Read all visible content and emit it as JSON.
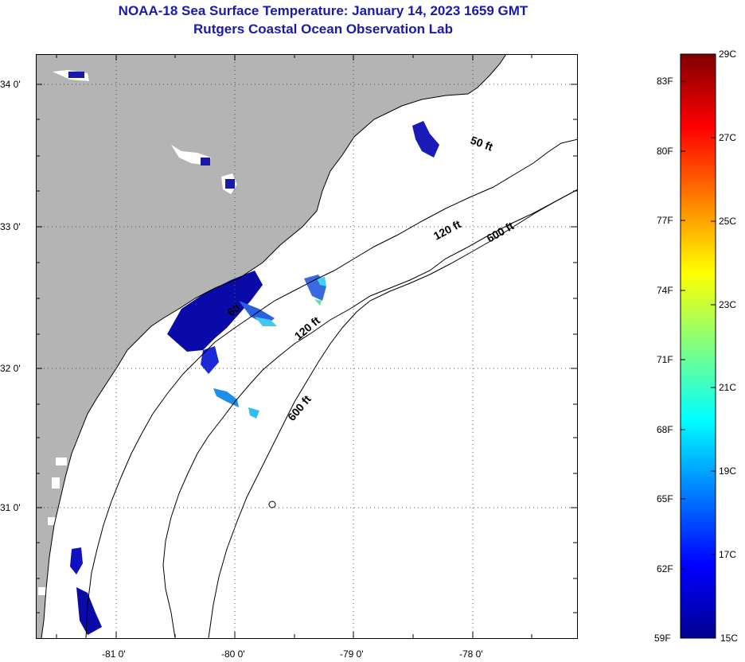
{
  "title": {
    "line1": "NOAA-18 Sea Surface Temperature:  January 14, 2023 1659 GMT",
    "line2": "Rutgers Coastal Ocean Observation Lab"
  },
  "map": {
    "latitude_labels": [
      "34 0'",
      "33 0'",
      "32 0'",
      "31 0'"
    ],
    "longitude_labels": [
      "-81 0'",
      "-80 0'",
      "-79 0'",
      "-78 0'"
    ],
    "depth_contours": [
      {
        "label": "50 ft"
      },
      {
        "label": "120 ft"
      },
      {
        "label": "120 ft"
      },
      {
        "label": "600 ft"
      },
      {
        "label": "600 ft"
      },
      {
        "label": "60"
      }
    ],
    "colors": {
      "land": "#b4b4b4",
      "water": "#ffffff",
      "contour": "#000000"
    }
  },
  "colorbar": {
    "fahrenheit_labels": [
      "83F",
      "80F",
      "77F",
      "74F",
      "71F",
      "68F",
      "65F",
      "62F",
      "59F"
    ],
    "celsius_labels": [
      "29C",
      "27C",
      "25C",
      "23C",
      "21C",
      "19C",
      "17C",
      "15C"
    ],
    "range_celsius": [
      15,
      29
    ]
  }
}
